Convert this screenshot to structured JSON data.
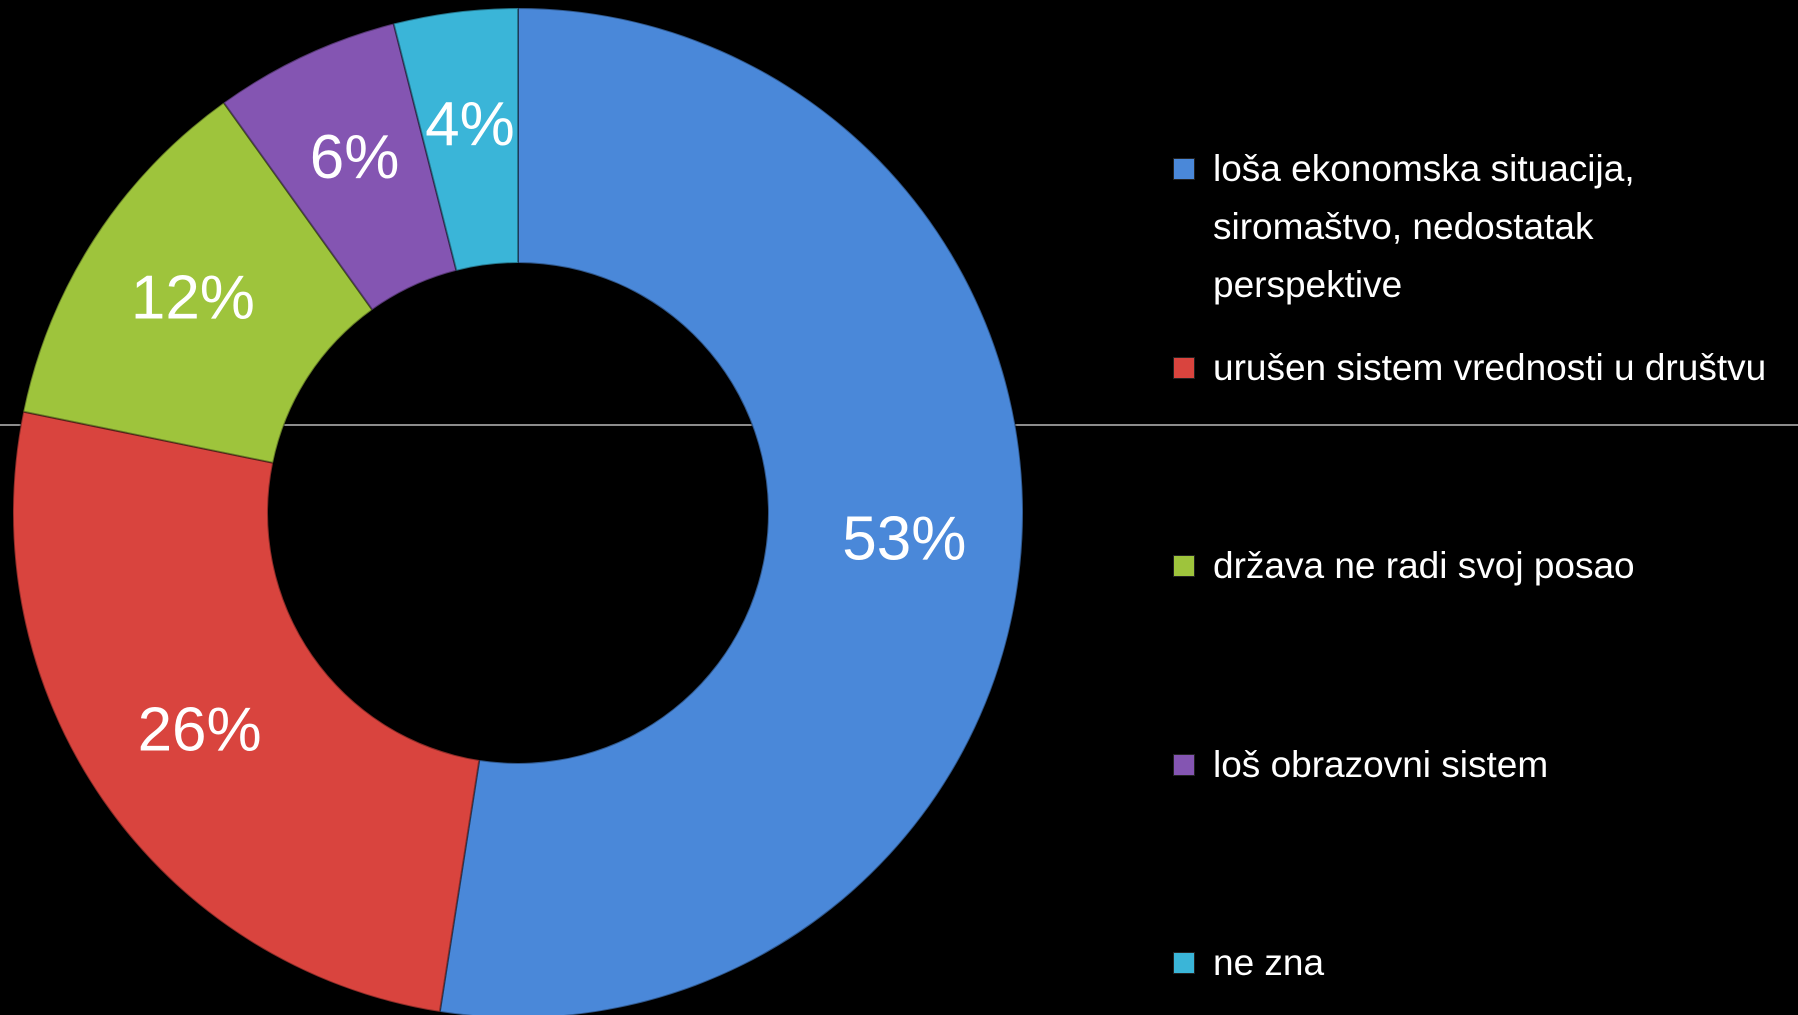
{
  "chart_data": {
    "type": "donut",
    "categories": [
      "loša ekonomska situacija, siromaštvo, nedostatak perspektive",
      "urušen sistem vrednosti u društvu",
      "država ne radi svoj posao",
      "loš obrazovni sistem",
      "ne zna"
    ],
    "values": [
      53,
      26,
      12,
      6,
      4
    ],
    "value_labels": [
      "53%",
      "26%",
      "12%",
      "6%",
      "4%"
    ],
    "colors": [
      "#4a88d9",
      "#d9443e",
      "#9ec43c",
      "#8455b2",
      "#3ab5d8"
    ],
    "legend": "right"
  }
}
